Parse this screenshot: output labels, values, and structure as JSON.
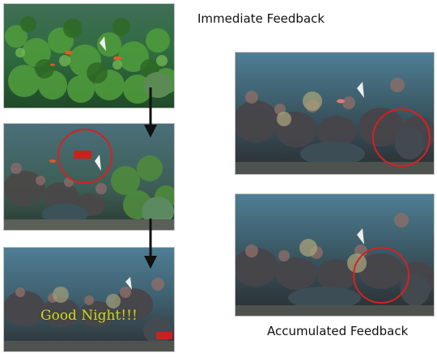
{
  "captions": {
    "immediate": "Immediate Feedback",
    "accumulated": "Accumulated Feedback"
  },
  "overlay_text": {
    "good_night": "Good Night!!!"
  },
  "colors": {
    "feedback_circle": "#d82020",
    "arrow": "#111111",
    "water_green": "#2f6b3e",
    "water_blue": "#4f7e95",
    "sign_red": "#c8221c"
  },
  "panels": [
    {
      "id": "aquarium-lush-green",
      "theme": "green"
    },
    {
      "id": "aquarium-circled-sign",
      "theme": "mixed"
    },
    {
      "id": "aquarium-good-night",
      "theme": "dark"
    },
    {
      "id": "aquarium-accumulated-1",
      "theme": "dark"
    },
    {
      "id": "aquarium-accumulated-2",
      "theme": "dark"
    }
  ]
}
